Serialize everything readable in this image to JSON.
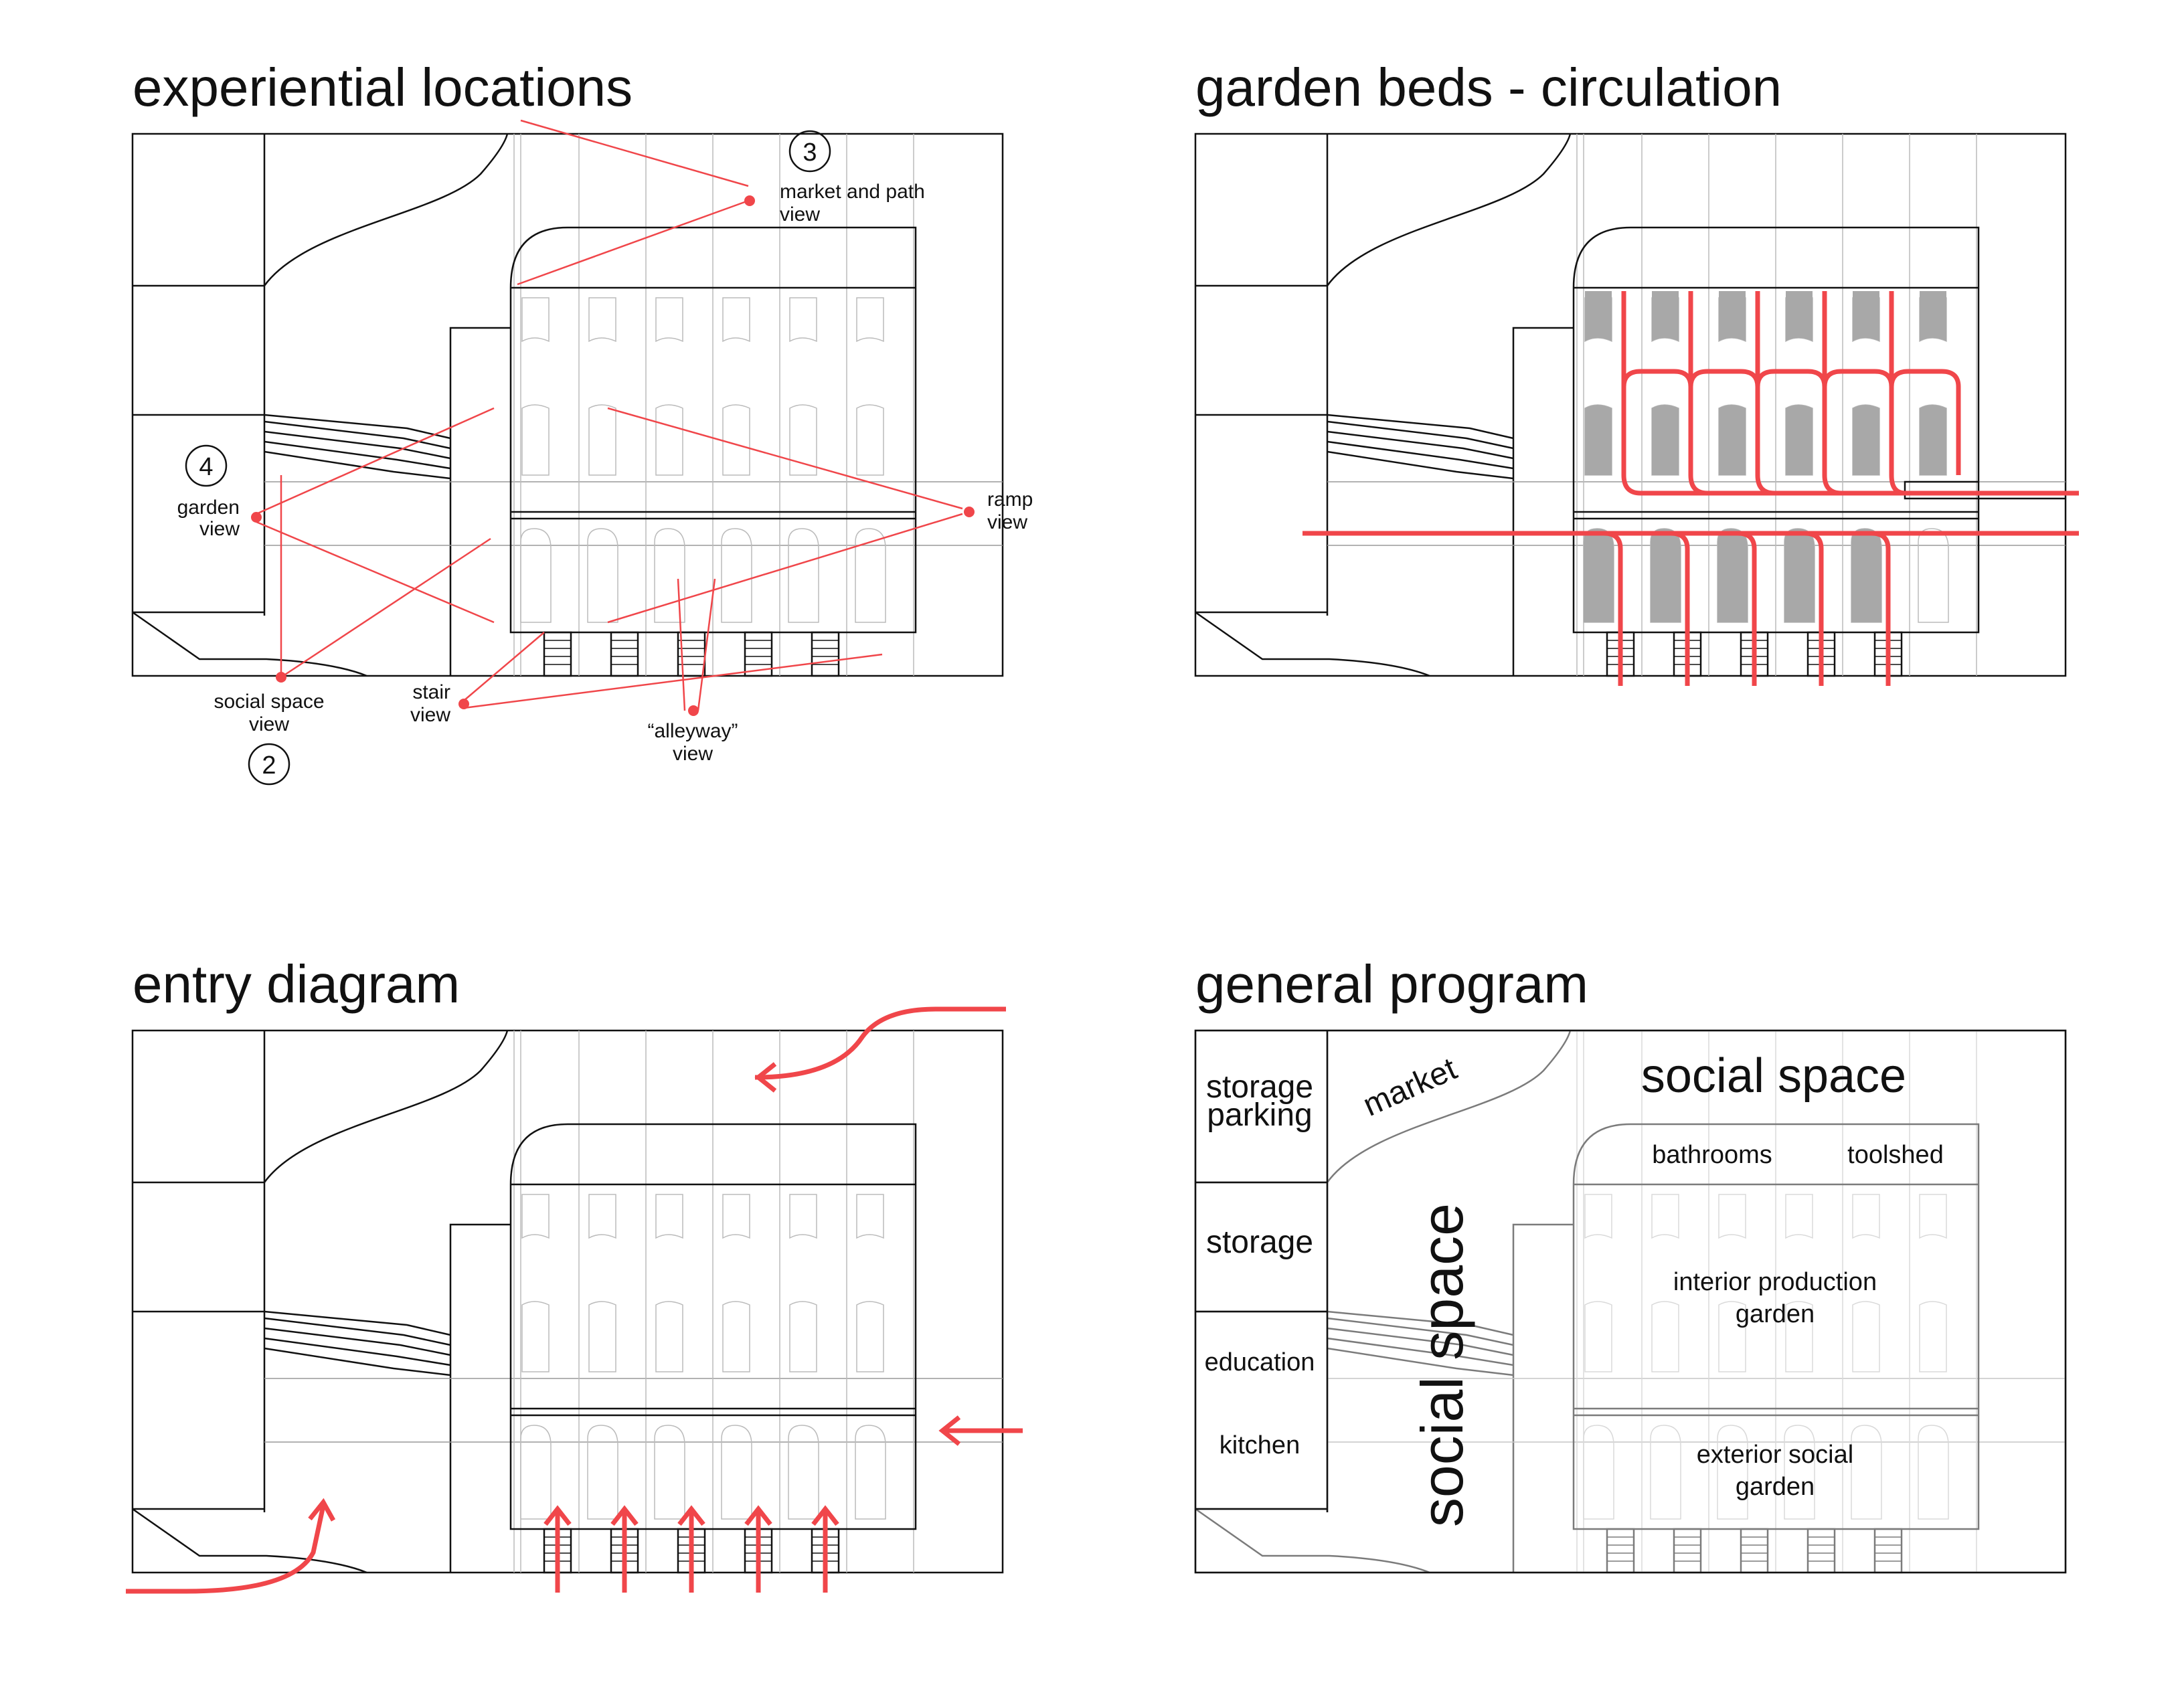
{
  "colors": {
    "accent": "#f0464a",
    "ink": "#111111",
    "bed_fill": "#a8a8a8"
  },
  "panels": {
    "experiential": {
      "title": "experiential locations",
      "labels": {
        "market_path_1": "market and path",
        "market_path_2": "view",
        "ramp_1": "ramp",
        "ramp_2": "view",
        "garden_1": "garden",
        "garden_2": "view",
        "social_1": "social space",
        "social_2": "view",
        "stair_1": "stair",
        "stair_2": "view",
        "alley_1": "“alleyway”",
        "alley_2": "view"
      },
      "numbers": {
        "n2": "2",
        "n3": "3",
        "n4": "4"
      }
    },
    "garden_beds": {
      "title": "garden beds - circulation"
    },
    "entry": {
      "title": "entry diagram"
    },
    "program": {
      "title": "general program",
      "labels": {
        "storage_parking_1": "storage",
        "storage_parking_2": "parking",
        "market": "market",
        "storage": "storage",
        "education": "education",
        "kitchen": "kitchen",
        "social_space_top": "social space",
        "social_space_vertical": "social space",
        "bathrooms": "bathrooms",
        "toolshed": "toolshed",
        "interior_1": "interior production",
        "interior_2": "garden",
        "exterior_1": "exterior social",
        "exterior_2": "garden"
      }
    }
  }
}
